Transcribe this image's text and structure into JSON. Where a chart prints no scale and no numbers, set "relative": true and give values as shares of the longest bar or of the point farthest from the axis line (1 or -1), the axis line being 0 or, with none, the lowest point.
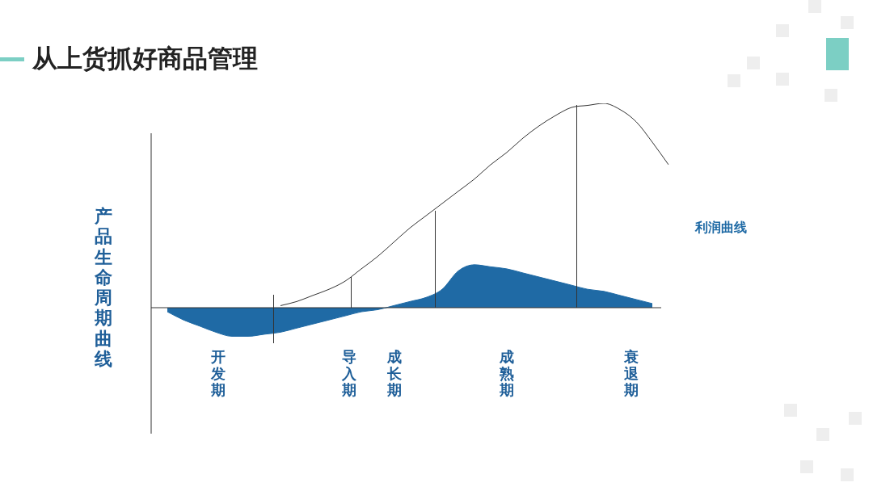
{
  "chart_data": {
    "type": "line",
    "title": "从上货抓好商品管理",
    "ylabel": "产品生命周期曲线",
    "relative": true,
    "categories": [
      null,
      null,
      null,
      null,
      null,
      null,
      null,
      null,
      null,
      null,
      null,
      null,
      null,
      null,
      null,
      null,
      null,
      null,
      null,
      null,
      null,
      null,
      null,
      null,
      null,
      null,
      null,
      null,
      null,
      null,
      null,
      null,
      null
    ],
    "series": [
      {
        "color": "#333333",
        "values": [
          null,
          null,
          null,
          null,
          null,
          null,
          null,
          null,
          0.01,
          0.03,
          0.06,
          0.09,
          0.13,
          0.19,
          0.25,
          0.32,
          0.39,
          0.45,
          0.51,
          0.57,
          0.63,
          0.7,
          0.76,
          0.83,
          0.89,
          0.94,
          0.98,
          0.99,
          1,
          0.97,
          0.91,
          0.81,
          0.7
        ]
      },
      {
        "type": "area",
        "name": "利润曲线",
        "color": "#1f6aa5",
        "values": [
          null,
          -0.02,
          -0.06,
          -0.09,
          -0.12,
          -0.14,
          -0.14,
          -0.13,
          -0.12,
          -0.1,
          -0.08,
          -0.06,
          -0.04,
          -0.02,
          -0.01,
          0.01,
          0.03,
          0.05,
          0.09,
          0.18,
          0.21,
          0.2,
          0.19,
          0.17,
          0.15,
          0.13,
          0.11,
          0.09,
          0.08,
          0.06,
          0.04,
          0.02,
          null
        ]
      }
    ],
    "annotations": [
      "开发期",
      "导入期",
      "成长期",
      "成熟期",
      "衰退期"
    ]
  }
}
